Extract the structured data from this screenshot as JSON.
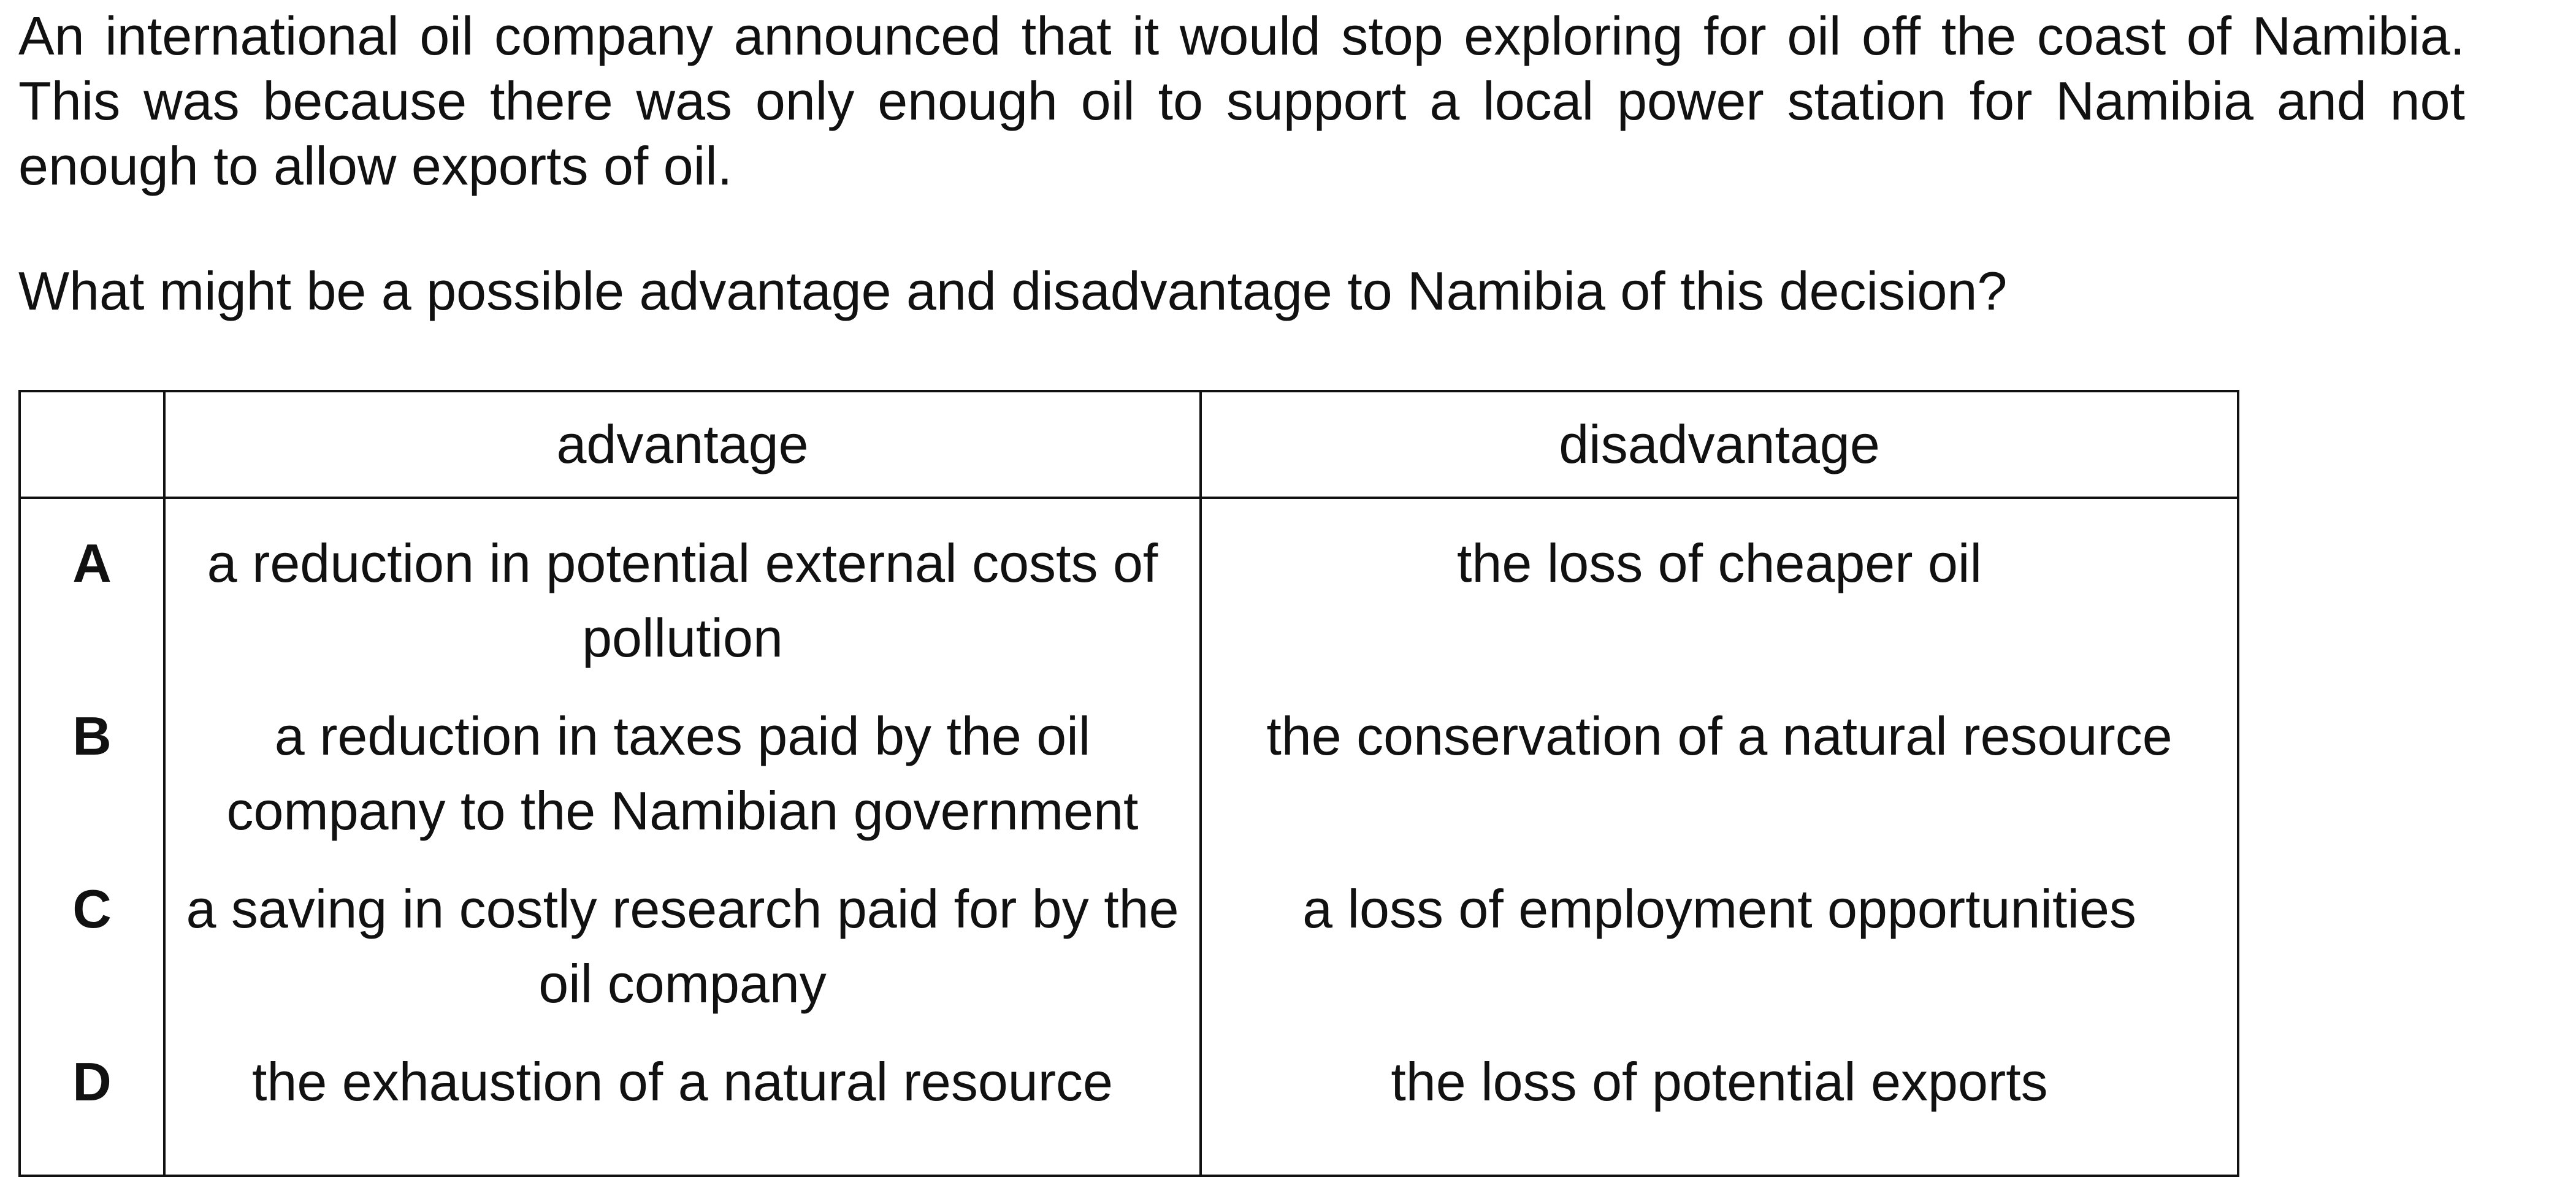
{
  "stem": "An international oil company announced that it would stop exploring for oil off the coast of Namibia. This was because there was only enough oil to support a local power station for Namibia and not enough to allow exports of oil.",
  "question": "What might be a possible advantage and disadvantage to Namibia of this decision?",
  "table": {
    "headers": {
      "letter": "",
      "advantage": "advantage",
      "disadvantage": "disadvantage"
    },
    "rows": [
      {
        "letter": "A",
        "advantage": "a reduction in potential external costs of pollution",
        "disadvantage": "the loss of cheaper oil"
      },
      {
        "letter": "B",
        "advantage": "a reduction in taxes paid by the oil company to the Namibian government",
        "disadvantage": "the conservation of a natural resource"
      },
      {
        "letter": "C",
        "advantage": "a saving in costly research paid for by the oil company",
        "disadvantage": "a loss of employment opportunities"
      },
      {
        "letter": "D",
        "advantage": "the exhaustion of a natural resource",
        "disadvantage": "the loss of potential exports"
      }
    ]
  }
}
